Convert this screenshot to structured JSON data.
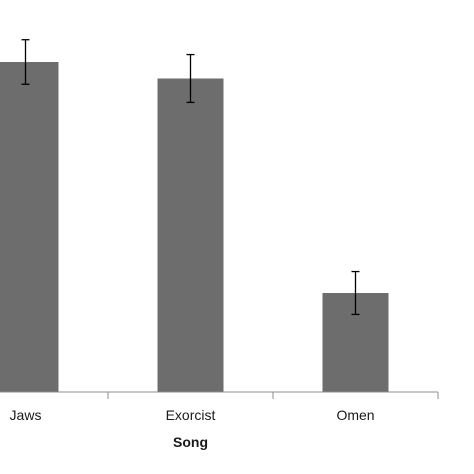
{
  "chart_data": {
    "type": "bar",
    "categories": [
      "Jaws",
      "Exorcist",
      "Omen"
    ],
    "values": [
      4.0,
      3.8,
      1.2
    ],
    "error": [
      0.27,
      0.29,
      0.26
    ],
    "ylim": [
      0,
      4.1
    ],
    "xlabel": "Song",
    "ylabel": "",
    "title": "",
    "bar_color": "#6d6d6d",
    "error_color": "#000000",
    "axis_color": "#8c8c8c",
    "grid": false
  }
}
